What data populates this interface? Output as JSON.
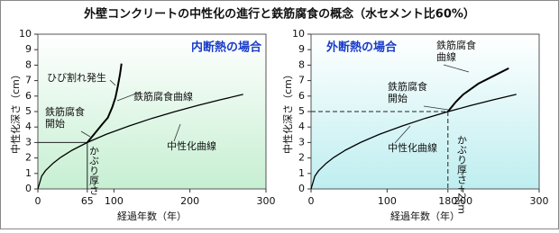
{
  "title": "外壁コンクリートの中性化の進行と鉄筋腐食の概念（水セメント比60%）",
  "chart_data": [
    {
      "type": "line",
      "panel_title": "内断熱の場合",
      "background": "#c6efd2",
      "xlabel": "経過年数（年）",
      "ylabel": "中性化深さ（cm）",
      "xlim": [
        0,
        300
      ],
      "xticks": [
        0,
        65,
        100,
        200,
        300
      ],
      "ylim": [
        0,
        10
      ],
      "yticks": [
        0,
        1,
        2,
        3,
        4,
        5,
        6,
        7,
        8,
        9,
        10
      ],
      "guide_dashed": false,
      "series": [
        {
          "name": "中性化曲線",
          "color": "#000000",
          "x": [
            0,
            5,
            10,
            20,
            30,
            45,
            65,
            90,
            120,
            150,
            180,
            210,
            240,
            270
          ],
          "values": [
            0,
            0.83,
            1.18,
            1.66,
            2.04,
            2.5,
            3.0,
            3.53,
            4.07,
            4.56,
            4.99,
            5.39,
            5.76,
            6.11
          ]
        },
        {
          "name": "鉄筋腐食曲線",
          "color": "#000000",
          "x": [
            65,
            75,
            85,
            92,
            98,
            102,
            105,
            108,
            110
          ],
          "values": [
            3.0,
            3.6,
            4.2,
            4.6,
            5.3,
            5.9,
            6.6,
            7.4,
            8.1
          ]
        }
      ],
      "annotations": [
        "ひび割れ発生",
        "鉄筋腐食開始",
        "かぶり厚さ"
      ]
    },
    {
      "type": "line",
      "panel_title": "外断熱の場合",
      "background": "#bfeef0",
      "xlabel": "経過年数（年）",
      "ylabel": "中性化深さ（cm）",
      "xlim": [
        0,
        300
      ],
      "xticks": [
        0,
        100,
        180,
        200,
        300
      ],
      "ylim": [
        0,
        10
      ],
      "yticks": [
        0,
        1,
        2,
        3,
        4,
        5,
        6,
        7,
        8,
        9,
        10
      ],
      "guide_dashed": true,
      "series": [
        {
          "name": "中性化曲線",
          "color": "#000000",
          "x": [
            0,
            5,
            10,
            20,
            30,
            45,
            65,
            90,
            120,
            150,
            180,
            210,
            240,
            270
          ],
          "values": [
            0,
            0.83,
            1.18,
            1.66,
            2.04,
            2.5,
            3.0,
            3.53,
            4.07,
            4.56,
            4.99,
            5.39,
            5.76,
            6.11
          ]
        },
        {
          "name": "鉄筋腐食曲線",
          "color": "#000000",
          "x": [
            180,
            190,
            200,
            220,
            240,
            260
          ],
          "values": [
            5.0,
            5.6,
            6.1,
            6.8,
            7.3,
            7.8
          ]
        }
      ],
      "annotations": [
        "鉄筋腐食開始",
        "かぶり厚さ+2cm"
      ]
    }
  ]
}
